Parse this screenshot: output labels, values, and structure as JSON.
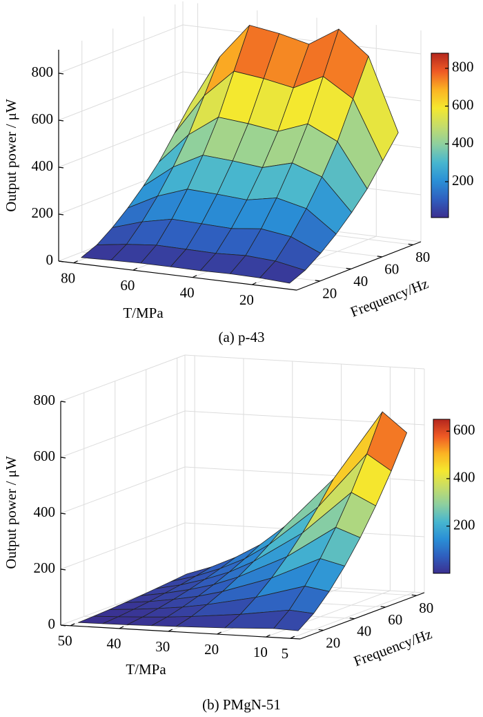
{
  "chart_data": [
    {
      "type": "surface",
      "caption": "(a) p-43",
      "xlabel": "T/MPa",
      "ylabel": "Frequency/Hz",
      "zlabel": "Output power / μW",
      "x": [
        80,
        70,
        60,
        50,
        40,
        30,
        20,
        10
      ],
      "y": [
        10,
        20,
        30,
        40,
        50,
        60,
        70,
        80
      ],
      "z": [
        [
          10,
          14,
          17,
          17,
          16,
          18,
          16,
          9
        ],
        [
          38,
          56,
          68,
          66,
          64,
          70,
          62,
          38
        ],
        [
          86,
          126,
          153,
          149,
          144,
          158,
          140,
          85
        ],
        [
          144,
          210,
          255,
          249,
          240,
          264,
          234,
          141
        ],
        [
          211,
          308,
          374,
          365,
          352,
          387,
          343,
          207
        ],
        [
          288,
          420,
          510,
          498,
          480,
          528,
          468,
          282
        ],
        [
          384,
          560,
          680,
          664,
          640,
          704,
          624,
          376
        ],
        [
          480,
          700,
          850,
          830,
          800,
          880,
          780,
          470
        ]
      ],
      "xlim": [
        85,
        5
      ],
      "ylim": [
        5,
        85
      ],
      "zlim": [
        0,
        900
      ],
      "xticks": [
        80,
        60,
        40,
        20
      ],
      "yticks": [
        20,
        40,
        60,
        80
      ],
      "zticks": [
        0,
        200,
        400,
        600,
        800
      ],
      "clim": [
        10,
        880
      ],
      "cticks": [
        200,
        400,
        600,
        800
      ],
      "colormap": [
        "#3b2f8f",
        "#2f5fbf",
        "#2a8fd6",
        "#47b6cf",
        "#8ccfa0",
        "#c5dc6a",
        "#f5e82e",
        "#fbb323",
        "#ef5a24",
        "#b4271e"
      ]
    },
    {
      "type": "surface",
      "caption": "(b) PMgN-51",
      "xlabel": "T/MPa",
      "ylabel": "Frequency/Hz",
      "zlabel": "Output power / μW",
      "x": [
        50,
        45,
        40,
        35,
        30,
        20,
        10,
        5
      ],
      "y": [
        10,
        20,
        30,
        40,
        50,
        60,
        70,
        80
      ],
      "z": [
        [
          1,
          2,
          3,
          5,
          7,
          12,
          20,
          17
        ],
        [
          3,
          6,
          10,
          15,
          22,
          40,
          65,
          58
        ],
        [
          6,
          12,
          20,
          30,
          44,
          80,
          130,
          116
        ],
        [
          10,
          19,
          32,
          48,
          70,
          128,
          208,
          186
        ],
        [
          14,
          28,
          46,
          69,
          101,
          184,
          299,
          267
        ],
        [
          19,
          37,
          62,
          93,
          136,
          248,
          403,
          360
        ],
        [
          24,
          48,
          80,
          120,
          176,
          320,
          520,
          464
        ],
        [
          30,
          60,
          100,
          150,
          220,
          400,
          650,
          580
        ]
      ],
      "xlim": [
        52,
        3
      ],
      "ylim": [
        5,
        85
      ],
      "zlim": [
        0,
        800
      ],
      "xticks": [
        50,
        40,
        30,
        20,
        10,
        5
      ],
      "yticks": [
        20,
        40,
        60,
        80
      ],
      "zticks": [
        0,
        200,
        400,
        600,
        800
      ],
      "clim": [
        1,
        650
      ],
      "cticks": [
        200,
        400,
        600
      ],
      "colormap": [
        "#3b2f8f",
        "#2f5fbf",
        "#2a8fd6",
        "#47b6cf",
        "#8ccfa0",
        "#c5dc6a",
        "#f5e82e",
        "#fbb323",
        "#ef5a24",
        "#b4271e"
      ]
    }
  ]
}
